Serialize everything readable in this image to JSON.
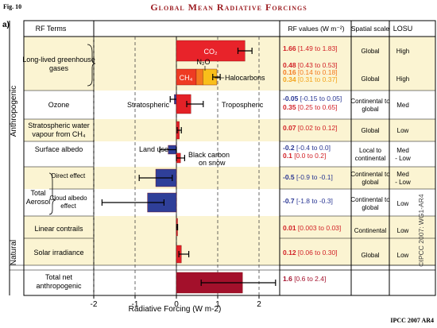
{
  "figure": {
    "fig_label": "Fig. 10",
    "title": "Global Mean Radiative Forcings",
    "panel": "a)",
    "credit": "IPCC 2007 AR4",
    "watermark": "©IPCC 2007: WG1-AR4"
  },
  "headers": {
    "rf_terms": "RF Terms",
    "rf_values": "RF values (W m⁻²)",
    "spatial": "Spatial scale",
    "losu": "LOSU"
  },
  "groups": {
    "anthropogenic": "Anthropogenic",
    "natural": "Natural",
    "total_aerosol": "Total Aerosol"
  },
  "colors": {
    "band": "#fbf4d2",
    "co2": "#e8232a",
    "ch4": "#ee3b23",
    "n2o": "#f47a20",
    "halocarbons": "#f9bf1a",
    "positive": "#e32127",
    "negative": "#2f3f99",
    "total": "#a3102b",
    "value_red": "#d11f25",
    "value_blue": "#283593",
    "value_orange": "#f4a31a"
  },
  "rows": [
    {
      "id": "ghg",
      "term": "Long-lived greenhouse gases",
      "spatial": "Global",
      "losu": "High"
    },
    {
      "id": "ghg2",
      "term": "",
      "spatial": "Global",
      "losu": "High"
    },
    {
      "id": "ozone",
      "term": "Ozone",
      "spatial": "Continental to global",
      "losu": "Med"
    },
    {
      "id": "strat",
      "term": "Stratospheric water vapour from CH₄",
      "spatial": "Global",
      "losu": "Low"
    },
    {
      "id": "albedo",
      "term": "Surface albedo",
      "spatial": "Local to continental",
      "losu": "Med - Low"
    },
    {
      "id": "direct",
      "term": "Direct effect",
      "spatial": "Continental to global",
      "losu": "Med - Low"
    },
    {
      "id": "cloud",
      "term": "Cloud albedo effect",
      "spatial": "Continental to global",
      "losu": "Low"
    },
    {
      "id": "contrails",
      "term": "Linear contrails",
      "spatial": "Continental",
      "losu": "Low"
    },
    {
      "id": "solar",
      "term": "Solar irradiance",
      "spatial": "Global",
      "losu": "Low"
    },
    {
      "id": "total",
      "term": "Total net anthropogenic",
      "spatial": "",
      "losu": ""
    }
  ],
  "rf_values": [
    {
      "row": 0,
      "line": 0,
      "main": "1.66",
      "range": "[1.49 to 1.83]",
      "color": "#d11f25"
    },
    {
      "row": 1,
      "line": 0,
      "main": "0.48",
      "range": "[0.43 to 0.53]",
      "color": "#d11f25"
    },
    {
      "row": 1,
      "line": 1,
      "main": "0.16",
      "range": "[0.14 to 0.18]",
      "color": "#f47a20"
    },
    {
      "row": 1,
      "line": 2,
      "main": "0.34",
      "range": "[0.31 to 0.37]",
      "color": "#f4a31a"
    },
    {
      "row": 2,
      "line": 0,
      "main": "-0.05",
      "range": "[-0.15 to 0.05]",
      "color": "#283593"
    },
    {
      "row": 2,
      "line": 1,
      "main": "0.35",
      "range": "[0.25 to 0.65]",
      "color": "#d11f25"
    },
    {
      "row": 3,
      "line": 0,
      "main": "0.07",
      "range": "[0.02 to 0.12]",
      "color": "#d11f25"
    },
    {
      "row": 4,
      "line": 0,
      "main": "-0.2",
      "range": "[-0.4 to 0.0]",
      "color": "#283593"
    },
    {
      "row": 4,
      "line": 1,
      "main": "0.1",
      "range": "[0.0 to 0.2]",
      "color": "#d11f25"
    },
    {
      "row": 5,
      "line": 0,
      "main": "-0.5",
      "range": "[-0.9 to -0.1]",
      "color": "#283593"
    },
    {
      "row": 6,
      "line": 0,
      "main": "-0.7",
      "range": "[-1.8 to -0.3]",
      "color": "#283593"
    },
    {
      "row": 7,
      "line": 0,
      "main": "0.01",
      "range": "[0.003 to 0.03]",
      "color": "#d11f25"
    },
    {
      "row": 8,
      "line": 0,
      "main": "0.12",
      "range": "[0.06 to 0.30]",
      "color": "#d11f25"
    },
    {
      "row": 9,
      "line": 0,
      "main": "1.6",
      "range": "[0.6 to 2.4]",
      "color": "#a3102b"
    }
  ],
  "annotations": {
    "co2": "CO₂",
    "ch4": "CH₄",
    "n2o": "N₂O",
    "halocarbons": "Halocarbons",
    "stratospheric": "Stratospheric",
    "tropospheric": "Tropospheric",
    "land_use": "Land use",
    "black_carbon": "Black carbon on snow"
  },
  "chart_data": {
    "type": "bar",
    "orientation": "horizontal",
    "xlabel": "Radiative Forcing  (W m-2)",
    "xlim": [
      -2,
      2.5
    ],
    "xticks": [
      -2,
      -1,
      0,
      1,
      2
    ],
    "grid": "dashed vertical at ticks",
    "bars": [
      {
        "name": "CO2",
        "row": 0,
        "value": 1.66,
        "lo": 1.49,
        "hi": 1.83,
        "color": "#e8232a",
        "label": "co2"
      },
      {
        "name": "CH4",
        "row": 1,
        "value": 0.48,
        "start": 0,
        "lo": null,
        "hi": null,
        "color": "#ee3b23",
        "label": "ch4"
      },
      {
        "name": "N2O",
        "row": 1,
        "value": 0.16,
        "start": 0.48,
        "color": "#f47a20"
      },
      {
        "name": "Halocarbons",
        "row": 1,
        "value": 0.34,
        "start": 0.64,
        "lo": 0.88,
        "hi": 1.06,
        "color": "#f9bf1a"
      },
      {
        "name": "Stratospheric ozone",
        "row": 2,
        "value": -0.05,
        "lo": -0.15,
        "hi": 0.05,
        "color": "#2f3f99",
        "half": "top"
      },
      {
        "name": "Tropospheric ozone",
        "row": 2,
        "value": 0.35,
        "lo": 0.25,
        "hi": 0.65,
        "color": "#e32127"
      },
      {
        "name": "Stratospheric water vapour",
        "row": 3,
        "value": 0.07,
        "lo": 0.02,
        "hi": 0.12,
        "color": "#e32127"
      },
      {
        "name": "Land use",
        "row": 4,
        "value": -0.2,
        "lo": -0.4,
        "hi": 0.0,
        "color": "#2f3f99",
        "half": "top"
      },
      {
        "name": "Black carbon on snow",
        "row": 4,
        "value": 0.1,
        "lo": 0.0,
        "hi": 0.2,
        "color": "#e32127",
        "half": "bottom"
      },
      {
        "name": "Aerosol direct effect",
        "row": 5,
        "value": -0.5,
        "lo": -0.9,
        "hi": -0.1,
        "color": "#2f3f99"
      },
      {
        "name": "Cloud albedo effect",
        "row": 6,
        "value": -0.7,
        "lo": -1.8,
        "hi": -0.3,
        "color": "#2f3f99"
      },
      {
        "name": "Linear contrails",
        "row": 7,
        "value": 0.01,
        "lo": 0.003,
        "hi": 0.03,
        "color": "#e32127"
      },
      {
        "name": "Solar irradiance",
        "row": 8,
        "value": 0.12,
        "lo": 0.06,
        "hi": 0.3,
        "color": "#e32127"
      },
      {
        "name": "Total net anthropogenic",
        "row": 9,
        "value": 1.6,
        "lo": 0.6,
        "hi": 2.4,
        "color": "#a3102b"
      }
    ]
  }
}
